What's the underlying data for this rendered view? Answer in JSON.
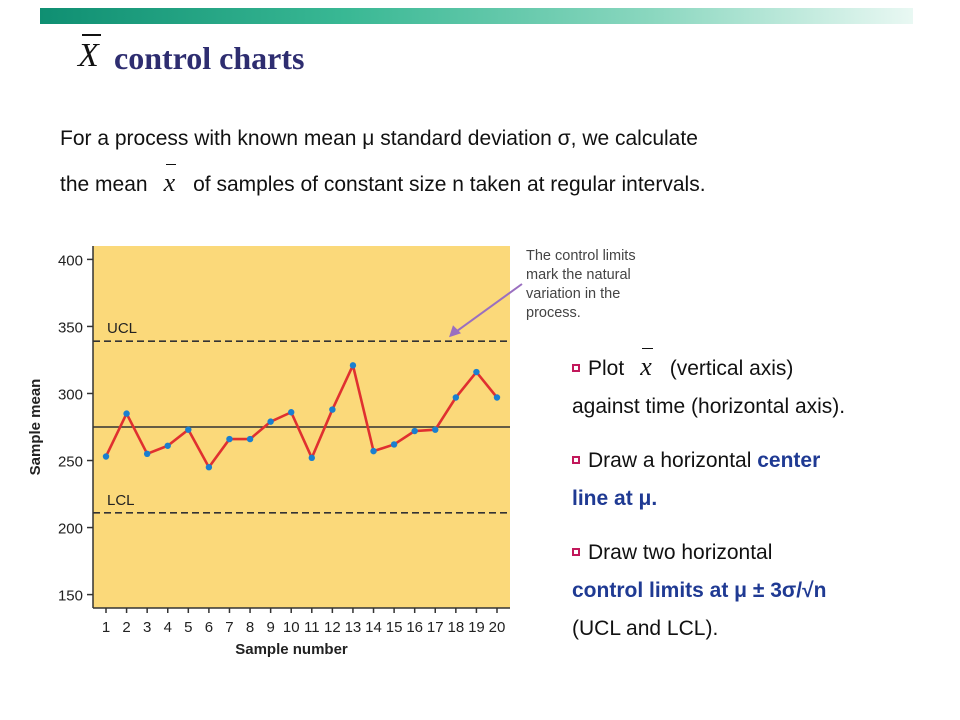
{
  "slide": {
    "title_symbol": "X",
    "title": "control charts",
    "intro_line1": "For a process with known mean μ standard deviation σ, we calculate",
    "intro_line2_a": "the mean",
    "intro_symbol": "x",
    "intro_line2_b": "of samples of constant size n taken at regular intervals.",
    "bullets": {
      "b1_a": "Plot",
      "b1_symbol": "x",
      "b1_b": "(vertical axis)",
      "b1_c": "against time (horizontal axis).",
      "b2_a": "Draw a horizontal",
      "b2_b": "center",
      "b2_c": "line at μ.",
      "b3_a": "Draw two horizontal",
      "b3_b": "control limits at μ ± 3σ/√n",
      "b3_c": "(UCL and LCL)."
    }
  },
  "colors": {
    "title": "#2e2d70",
    "chart_bg": "#fbd97a",
    "line": "#e03030",
    "points": "#1a7fd0",
    "annotation_arrow": "#9a6fc0",
    "highlight_text": "#1f3a93",
    "bullet": "#c2185b"
  },
  "chart_data": {
    "type": "line",
    "x": [
      1,
      2,
      3,
      4,
      5,
      6,
      7,
      8,
      9,
      10,
      11,
      12,
      13,
      14,
      15,
      16,
      17,
      18,
      19,
      20
    ],
    "values": [
      253,
      285,
      255,
      261,
      273,
      245,
      266,
      266,
      279,
      286,
      252,
      288,
      321,
      257,
      262,
      272,
      273,
      297,
      316,
      297
    ],
    "xlabel": "Sample number",
    "ylabel": "Sample mean",
    "yticks": [
      150,
      200,
      250,
      300,
      350,
      400
    ],
    "xticks": [
      "1",
      "2",
      "3",
      "4",
      "5",
      "6",
      "7",
      "8",
      "9",
      "10",
      "11",
      "12",
      "13",
      "14",
      "15",
      "16",
      "17",
      "18",
      "19",
      "20"
    ],
    "ylim": [
      140,
      410
    ],
    "center_line": 275,
    "ucl": 339,
    "lcl": 211,
    "ucl_label": "UCL",
    "lcl_label": "LCL",
    "annotation": [
      "The control limits",
      "mark the natural",
      "variation in the",
      "process."
    ],
    "grid": false
  }
}
